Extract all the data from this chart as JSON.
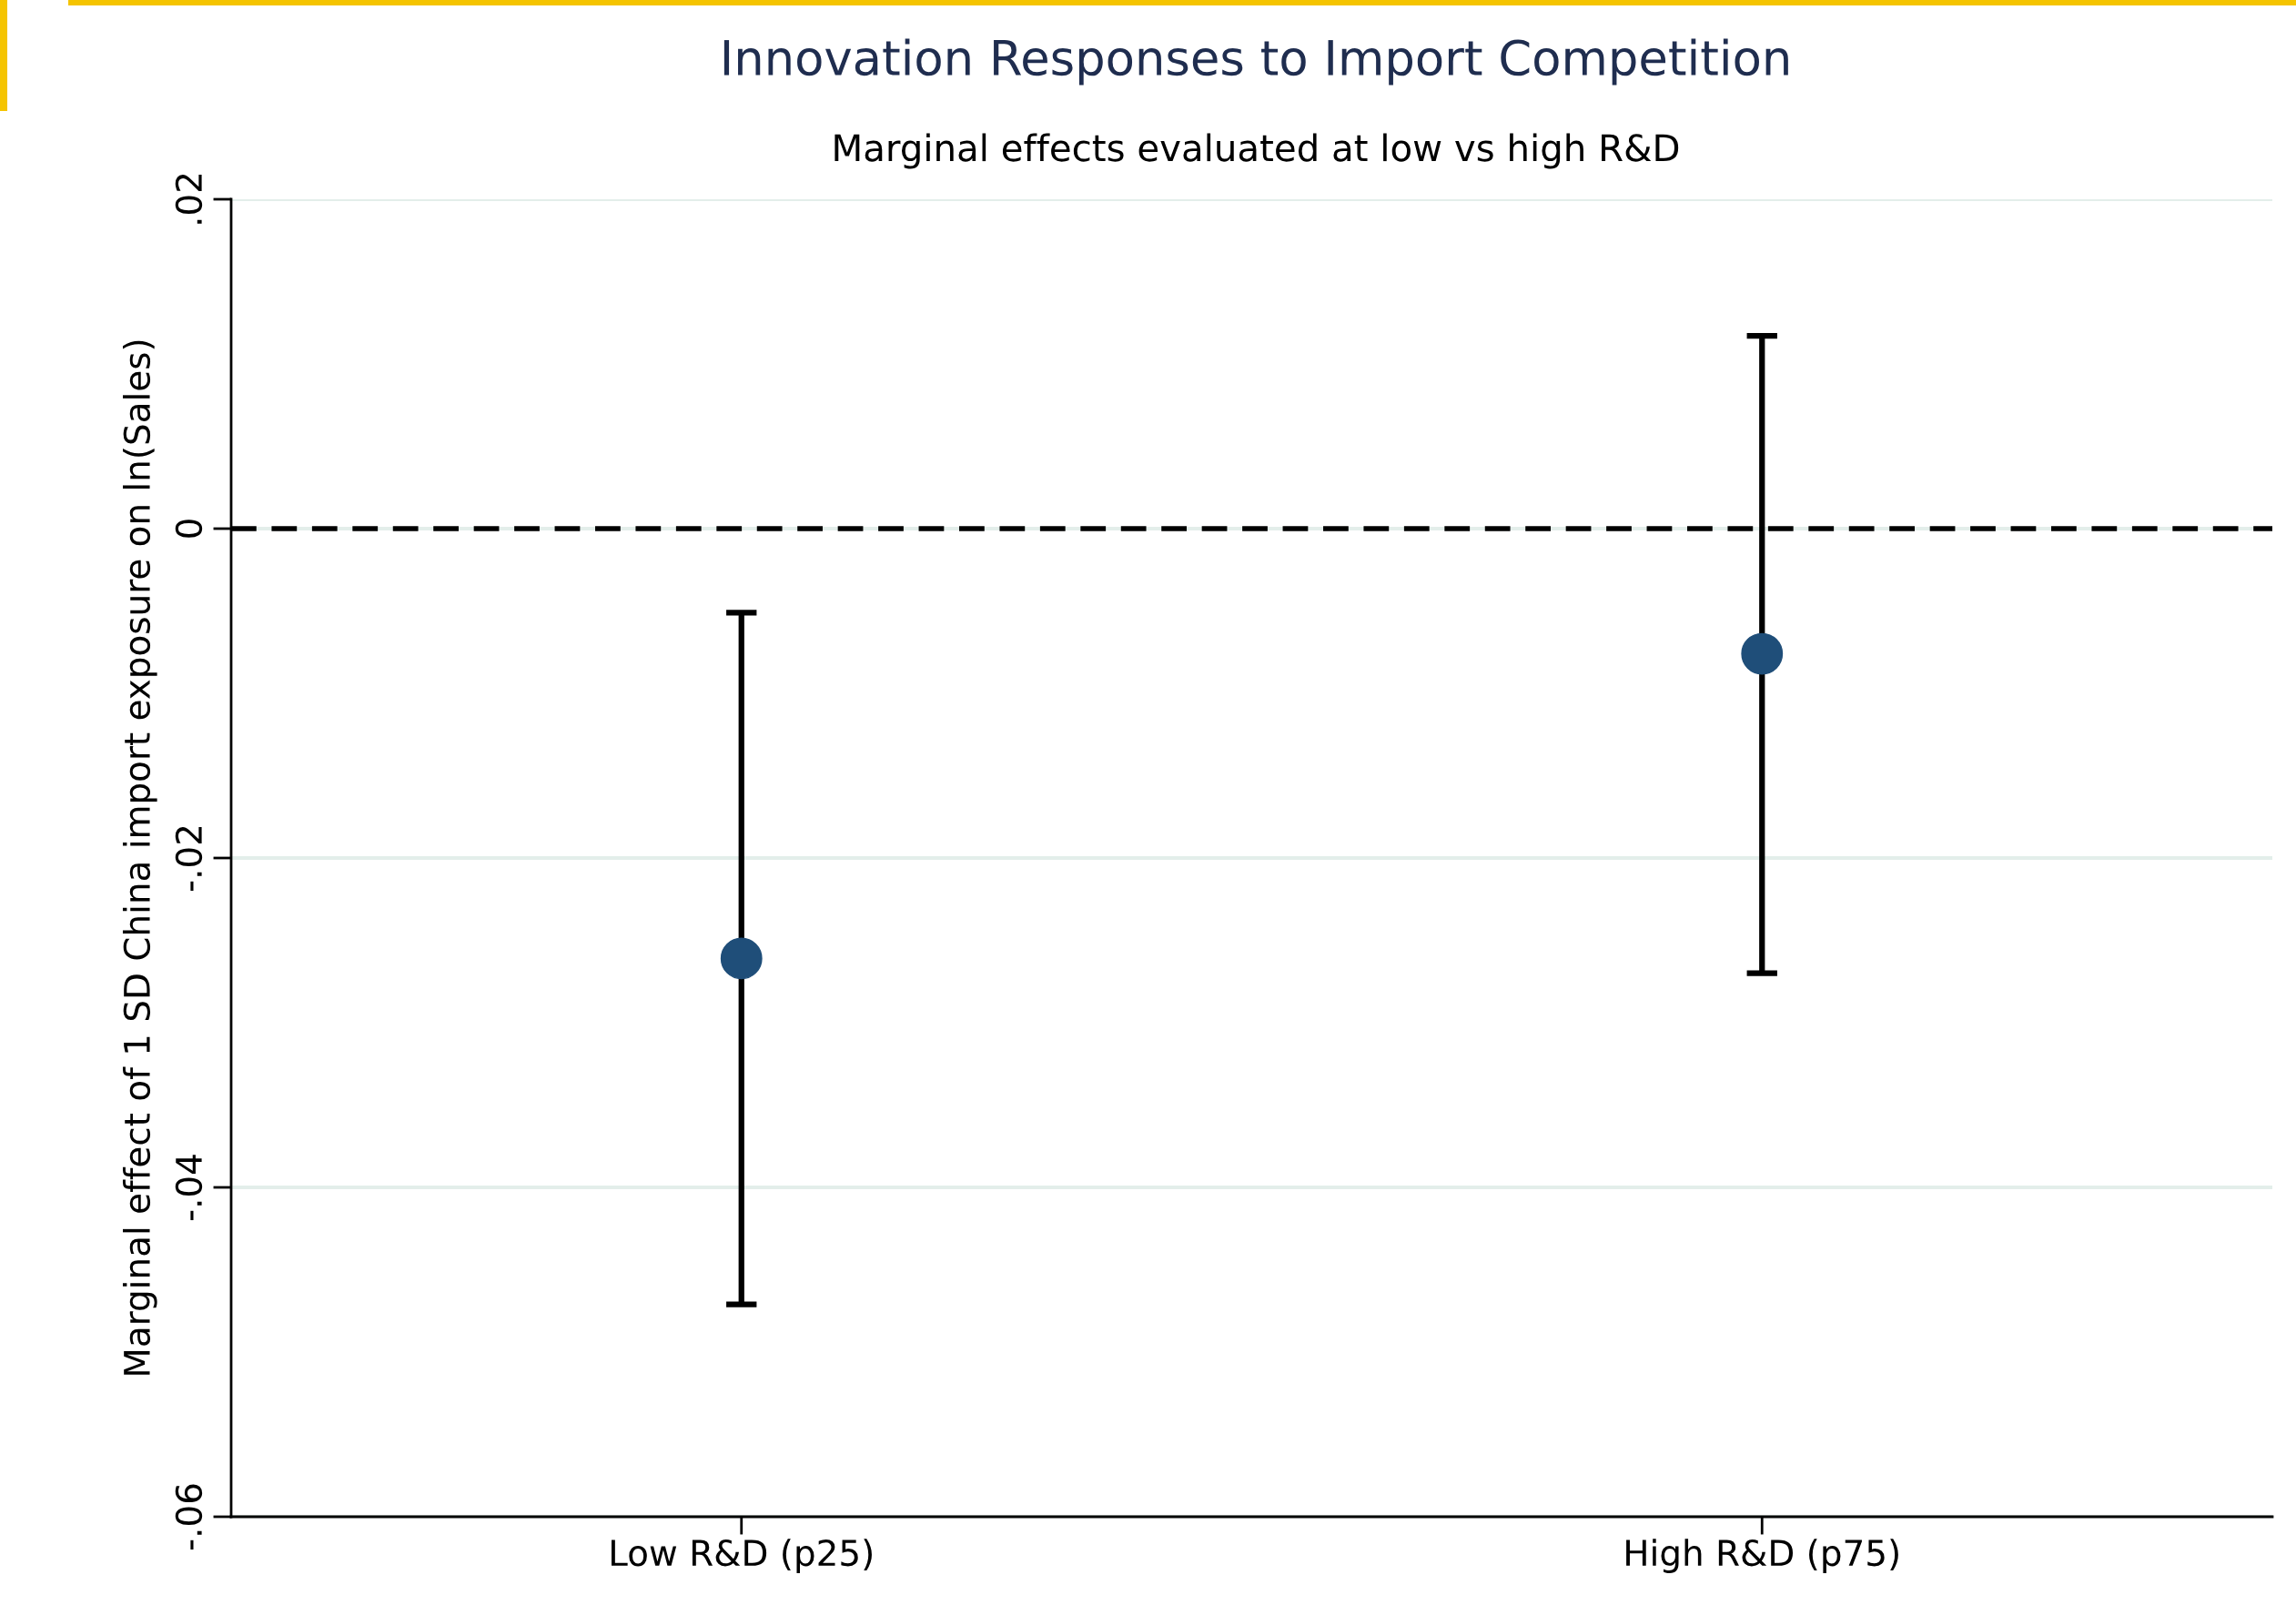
{
  "chart_data": {
    "type": "scatter",
    "title": "Innovation Responses to Import Competition",
    "subtitle": "Marginal effects evaluated at low vs high R&D",
    "ylabel": "Marginal effect of 1 SD China import exposure on ln(Sales)",
    "categories": [
      "Low R&D (p25)",
      "High R&D (p75)"
    ],
    "values": [
      -0.0261,
      -0.0076
    ],
    "errors": [
      [
        -0.0471,
        -0.0051
      ],
      [
        -0.027,
        0.0117
      ]
    ],
    "color": "#1f4e79",
    "marker": "circle",
    "ylim": [
      -0.06,
      0.02
    ],
    "yticks": [
      {
        "value": -0.06,
        "label": "-.06"
      },
      {
        "value": -0.04,
        "label": "-.04"
      },
      {
        "value": -0.02,
        "label": "-.02"
      },
      0,
      {
        "value": 0.02,
        "label": ".02"
      }
    ],
    "ref_lines": [
      {
        "axis": "y",
        "value": 0,
        "color": "#000000",
        "line_style": "dashed"
      }
    ],
    "grid": "y",
    "legend": false
  }
}
